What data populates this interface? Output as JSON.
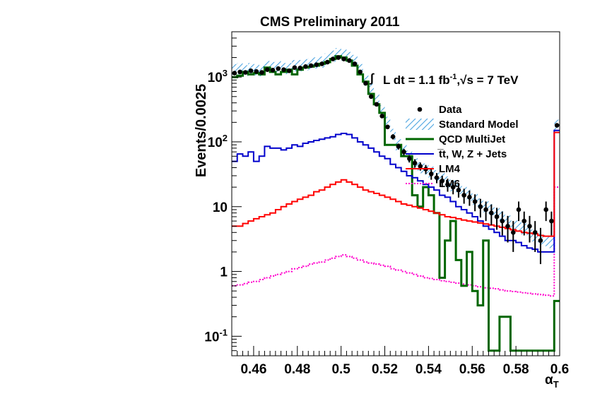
{
  "chart_data": {
    "type": "line",
    "title": "CMS Preliminary 2011",
    "xlabel": "α",
    "xlabel_sub": "T",
    "ylabel": "Events/0.0025",
    "xlim": [
      0.45,
      0.6
    ],
    "ylim": [
      0.05,
      5000
    ],
    "yscale": "log",
    "grid": false,
    "legend_position": "right",
    "x_ticks": [
      "0.46",
      "0.48",
      "0.5",
      "0.52",
      "0.54",
      "0.56",
      "0.58",
      "0.6"
    ],
    "y_ticks": [
      {
        "base": "10",
        "exp": "-1",
        "value": 0.1
      },
      {
        "base": "1",
        "exp": "",
        "value": 1
      },
      {
        "base": "10",
        "exp": "",
        "value": 10
      },
      {
        "base": "10",
        "exp": "2",
        "value": 100
      },
      {
        "base": "10",
        "exp": "3",
        "value": 1000
      }
    ],
    "annotation": {
      "integral": "∫",
      "lumi": "L dt = 1.1 fb",
      "lumi_sup": "-1",
      "sep": ",",
      "sqrt": "√",
      "energy": "s = 7 TeV"
    },
    "bin_edges": [
      0.45,
      0.4525,
      0.455,
      0.4575,
      0.46,
      0.4625,
      0.465,
      0.4675,
      0.47,
      0.4725,
      0.475,
      0.4775,
      0.48,
      0.4825,
      0.485,
      0.4875,
      0.49,
      0.4925,
      0.495,
      0.4975,
      0.5,
      0.5025,
      0.505,
      0.5075,
      0.51,
      0.5125,
      0.515,
      0.5175,
      0.52,
      0.5225,
      0.525,
      0.5275,
      0.53,
      0.5325,
      0.535,
      0.5375,
      0.54,
      0.5425,
      0.545,
      0.5475,
      0.55,
      0.5525,
      0.555,
      0.5575,
      0.56,
      0.5625,
      0.565,
      0.5675,
      0.57,
      0.5725,
      0.575,
      0.5775,
      0.58,
      0.5825,
      0.585,
      0.5875,
      0.59,
      0.5925,
      0.595,
      0.5975,
      0.6
    ],
    "series": [
      {
        "name": "Data",
        "style": "points",
        "color": "#000000",
        "x": [
          0.45125,
          0.45375,
          0.45625,
          0.45875,
          0.46125,
          0.46375,
          0.46625,
          0.46875,
          0.47125,
          0.47375,
          0.47625,
          0.47875,
          0.48125,
          0.48375,
          0.48625,
          0.48875,
          0.49125,
          0.49375,
          0.49625,
          0.49875,
          0.50125,
          0.50375,
          0.50625,
          0.50875,
          0.51125,
          0.51375,
          0.51625,
          0.51875,
          0.52125,
          0.52375,
          0.52625,
          0.52875,
          0.53125,
          0.53375,
          0.53625,
          0.53875,
          0.54125,
          0.54375,
          0.54625,
          0.54875,
          0.55125,
          0.55375,
          0.55625,
          0.55875,
          0.56125,
          0.56375,
          0.56625,
          0.56875,
          0.57125,
          0.57375,
          0.57625,
          0.57875,
          0.58125,
          0.58375,
          0.58625,
          0.58875,
          0.59125,
          0.59375,
          0.59625,
          0.59875
        ],
        "values": [
          1150,
          1200,
          1180,
          1250,
          1220,
          1180,
          1300,
          1280,
          1350,
          1300,
          1250,
          1400,
          1380,
          1450,
          1500,
          1550,
          1600,
          1700,
          1900,
          2000,
          1900,
          1800,
          1600,
          1200,
          800,
          500,
          380,
          250,
          170,
          120,
          85,
          70,
          55,
          47,
          42,
          38,
          32,
          28,
          25,
          22,
          20,
          18,
          15,
          14,
          12,
          10,
          9,
          8,
          7,
          6,
          5,
          4,
          9,
          6,
          5,
          4,
          3,
          9,
          6,
          180
        ],
        "errors": [
          35,
          35,
          35,
          35,
          35,
          35,
          36,
          36,
          37,
          36,
          35,
          37,
          37,
          38,
          39,
          39,
          40,
          41,
          44,
          45,
          44,
          42,
          40,
          35,
          28,
          22,
          19,
          16,
          13,
          11,
          9,
          8,
          7,
          7,
          6,
          6,
          6,
          5,
          5,
          5,
          4.5,
          4.2,
          3.9,
          3.7,
          3.5,
          3.2,
          3.0,
          2.8,
          2.6,
          2.4,
          2.2,
          2.0,
          3.0,
          2.4,
          2.2,
          2.0,
          1.7,
          3.0,
          2.4,
          13
        ]
      },
      {
        "name": "Standard Model",
        "style": "hatched",
        "color": "#4aa3e0",
        "values": [
          1300,
          1350,
          1250,
          1350,
          1300,
          1250,
          1450,
          1400,
          1450,
          1350,
          1350,
          1500,
          1500,
          1550,
          1600,
          1650,
          1700,
          1900,
          2100,
          2300,
          2200,
          2000,
          1800,
          1300,
          900,
          650,
          450,
          300,
          200,
          130,
          90,
          75,
          60,
          48,
          40,
          38,
          34,
          30,
          27,
          24,
          21,
          19,
          17,
          15,
          13,
          11,
          10,
          9,
          8,
          7,
          6,
          5,
          5,
          4.5,
          4,
          3.5,
          3.2,
          3,
          2.8,
          180
        ]
      },
      {
        "name": "QCD MultiJet",
        "style": "step",
        "color": "#006600",
        "values": [
          1000,
          1050,
          1200,
          1100,
          1150,
          1100,
          1400,
          1200,
          1100,
          1200,
          1300,
          1100,
          1300,
          1400,
          1450,
          1500,
          1600,
          1700,
          1900,
          2100,
          2000,
          1800,
          1500,
          1100,
          850,
          550,
          380,
          280,
          90,
          90,
          90,
          60,
          60,
          15,
          10,
          20,
          15,
          8,
          0.8,
          3,
          6,
          1.5,
          0.6,
          2,
          0.5,
          0.3,
          3,
          0.06,
          0.06,
          0.2,
          0.2,
          0.06,
          0.06,
          0.06,
          0.06,
          0.06,
          0.06,
          0.06,
          0.06,
          0.35
        ]
      },
      {
        "name": "t̅t, W, Z + Jets",
        "style": "step",
        "color": "#0000cc",
        "values": [
          50,
          65,
          60,
          70,
          50,
          60,
          85,
          80,
          80,
          75,
          80,
          90,
          85,
          95,
          100,
          105,
          110,
          115,
          120,
          130,
          135,
          130,
          115,
          100,
          90,
          80,
          70,
          60,
          55,
          45,
          40,
          35,
          30,
          28,
          25,
          22,
          20,
          18,
          15,
          14,
          12,
          10,
          9,
          8,
          7,
          6,
          5,
          4.5,
          4,
          3.5,
          3,
          3,
          2.8,
          2.5,
          2.3,
          2.2,
          2,
          2,
          2,
          150
        ]
      },
      {
        "name": "LM4",
        "style": "step",
        "color": "#ff0000",
        "values": [
          5,
          5,
          5.5,
          6,
          6.5,
          7,
          7.5,
          8,
          9,
          10,
          11,
          12,
          13,
          14,
          15,
          17,
          18,
          20,
          22,
          24,
          26,
          24,
          22,
          20,
          18,
          17,
          16,
          15,
          14,
          13,
          12,
          11,
          10.5,
          10,
          9.5,
          9,
          8.5,
          8,
          7.5,
          7,
          6.8,
          6.5,
          6.2,
          6,
          5.8,
          5.6,
          5.4,
          5.2,
          5,
          4.8,
          4.6,
          4.4,
          4.2,
          4,
          3.9,
          3.8,
          3.6,
          3.5,
          3.5,
          140
        ]
      },
      {
        "name": "LM6",
        "style": "dotted-step",
        "color": "#ff00cc",
        "values": [
          0.6,
          0.62,
          0.65,
          0.68,
          0.7,
          0.75,
          0.8,
          0.85,
          0.9,
          0.95,
          1.0,
          1.1,
          1.15,
          1.2,
          1.3,
          1.35,
          1.4,
          1.5,
          1.6,
          1.7,
          1.8,
          1.7,
          1.6,
          1.5,
          1.4,
          1.35,
          1.3,
          1.25,
          1.2,
          1.1,
          1.05,
          1.0,
          0.95,
          0.9,
          0.85,
          0.8,
          0.78,
          0.75,
          0.72,
          0.7,
          0.68,
          0.66,
          0.64,
          0.62,
          0.6,
          0.58,
          0.56,
          0.55,
          0.54,
          0.52,
          0.5,
          0.49,
          0.48,
          0.47,
          0.46,
          0.45,
          0.44,
          0.43,
          0.42,
          20
        ]
      }
    ]
  }
}
